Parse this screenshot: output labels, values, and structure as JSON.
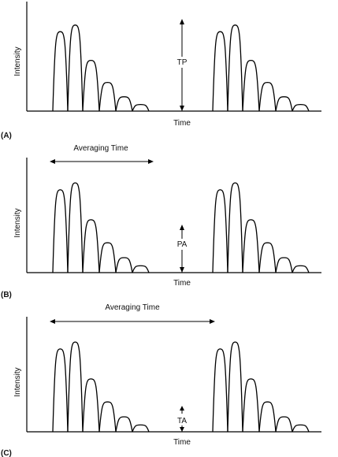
{
  "panels": [
    {
      "tag": "(A)",
      "ylabel": "Intensity",
      "xlabel": "Time",
      "marker": "TP",
      "averaging": ""
    },
    {
      "tag": "(B)",
      "ylabel": "Intensity",
      "xlabel": "Time",
      "marker": "PA",
      "averaging": "Averaging Time"
    },
    {
      "tag": "(C)",
      "ylabel": "Intensity",
      "xlabel": "Time",
      "marker": "TA",
      "averaging": "Averaging Time"
    }
  ],
  "pulse_train": {
    "relative_peak_heights": [
      0.72,
      0.78,
      0.46,
      0.26,
      0.13,
      0.06
    ]
  }
}
